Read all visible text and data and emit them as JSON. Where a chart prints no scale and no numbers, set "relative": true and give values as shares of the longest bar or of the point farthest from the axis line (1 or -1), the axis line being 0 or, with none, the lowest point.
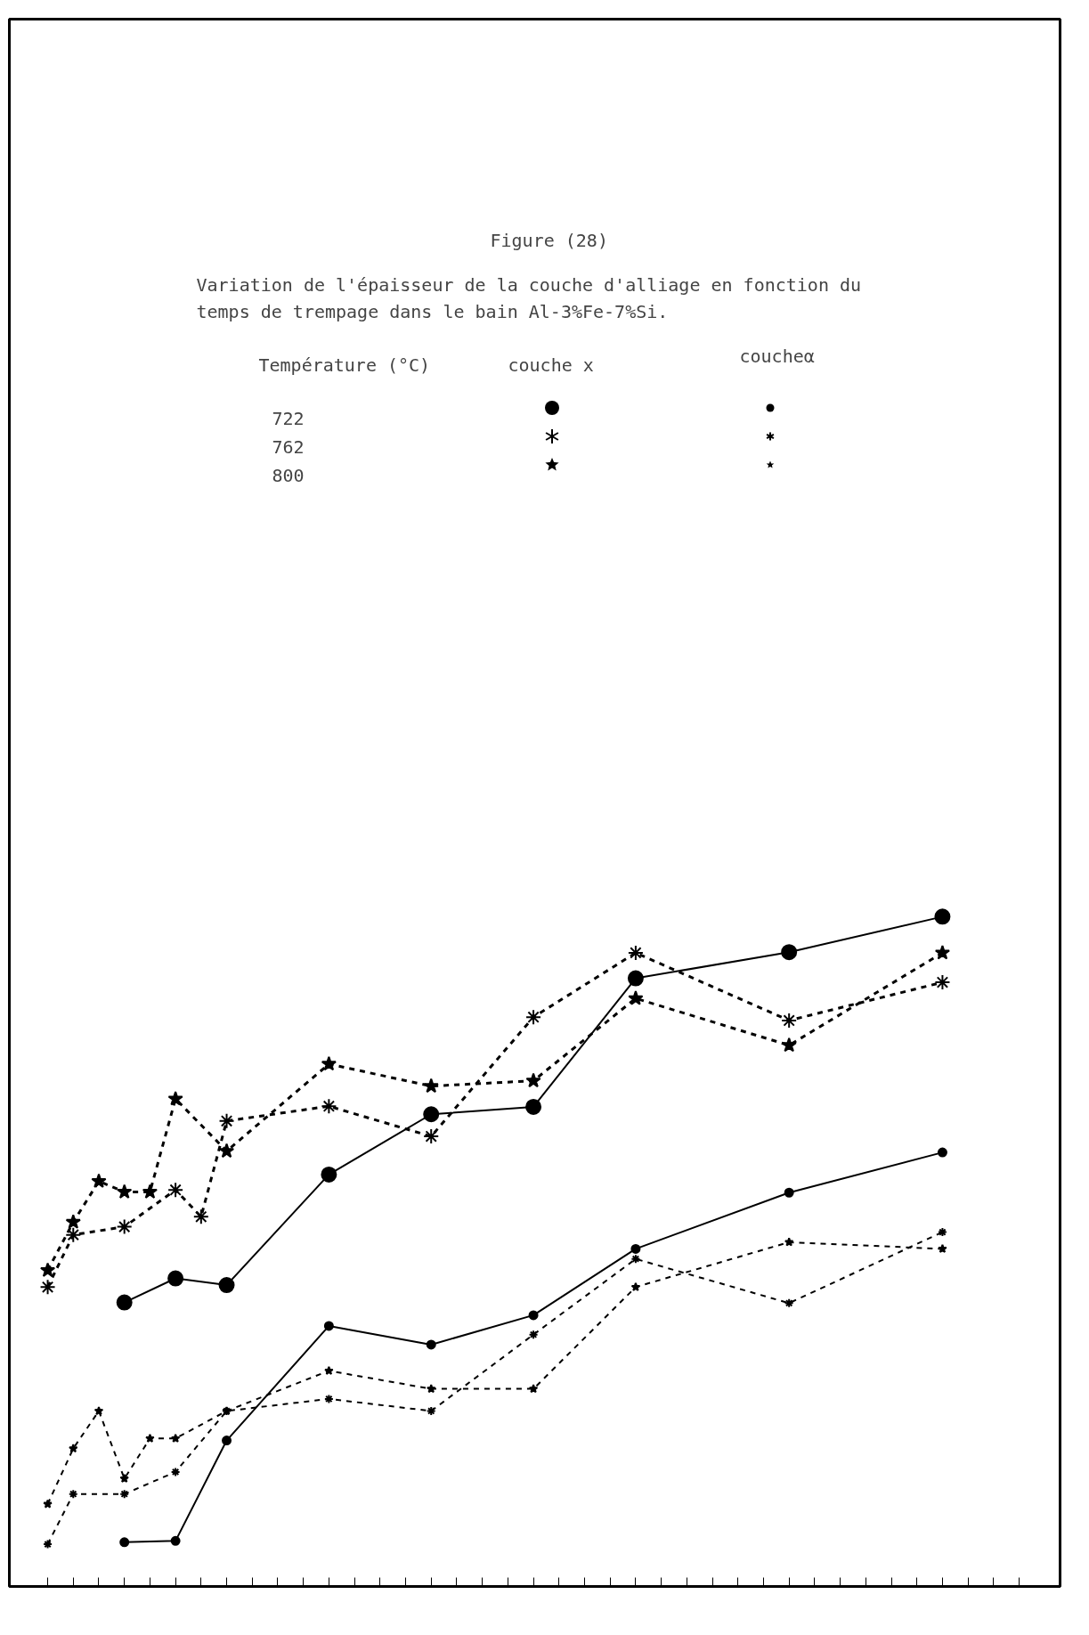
{
  "chart_data": {
    "type": "line",
    "relative": true,
    "title": "Figure (28)",
    "subtitle": "Variation de l'épaisseur de la couche d'alliage en fonction du temps de trempage dans le bain Al-3%Fe-7%Si.",
    "legend_title": "Température (°C)",
    "annotations": [
      "couche x",
      "coucheα",
      "722",
      "762",
      "800"
    ],
    "categories": [
      null,
      null,
      null,
      null,
      null,
      null,
      null,
      null,
      null,
      null,
      null,
      null,
      null,
      null,
      null,
      null,
      null,
      null,
      null,
      null,
      null,
      null,
      null,
      null,
      null,
      null,
      null,
      null,
      null,
      null,
      null,
      null,
      null,
      null,
      null,
      null,
      null,
      null,
      null
    ],
    "series": [
      {
        "color": "#000000",
        "marker": "circle",
        "line_style": "solid",
        "values": [
          null,
          null,
          null,
          0.424,
          null,
          0.46,
          null,
          0.45,
          null,
          null,
          null,
          0.615,
          null,
          null,
          null,
          0.705,
          null,
          null,
          null,
          0.716,
          null,
          null,
          null,
          0.908,
          null,
          null,
          null,
          null,
          null,
          0.947,
          null,
          null,
          null,
          null,
          null,
          1,
          null,
          null,
          null
        ]
      },
      {
        "color": "#000000",
        "marker": "cross",
        "line_style": "dashed",
        "values": [
          0.447,
          0.525,
          null,
          0.537,
          null,
          0.592,
          0.552,
          0.695,
          null,
          null,
          null,
          0.717,
          null,
          null,
          null,
          0.672,
          null,
          null,
          null,
          0.85,
          null,
          null,
          null,
          0.946,
          null,
          null,
          null,
          null,
          null,
          0.845,
          null,
          null,
          null,
          null,
          null,
          0.902,
          null,
          null,
          null
        ]
      },
      {
        "color": "#000000",
        "marker": "star",
        "line_style": "dashed",
        "values": [
          0.472,
          0.544,
          0.605,
          0.589,
          0.589,
          0.728,
          null,
          0.65,
          null,
          null,
          null,
          0.78,
          null,
          null,
          null,
          0.747,
          null,
          null,
          null,
          0.755,
          null,
          null,
          null,
          0.878,
          null,
          null,
          null,
          null,
          null,
          0.808,
          null,
          null,
          null,
          null,
          null,
          0.946,
          null,
          null,
          null
        ]
      },
      {
        "color": "#000000",
        "marker": "circle",
        "line_style": "solid",
        "values": [
          null,
          null,
          null,
          0.066,
          null,
          0.068,
          null,
          0.218,
          null,
          null,
          null,
          0.389,
          null,
          null,
          null,
          0.361,
          null,
          null,
          null,
          0.405,
          null,
          null,
          null,
          0.504,
          null,
          null,
          null,
          null,
          null,
          0.588,
          null,
          null,
          null,
          null,
          null,
          0.648,
          null,
          null,
          null
        ]
      },
      {
        "color": "#000000",
        "marker": "cross",
        "line_style": "dashed",
        "values": [
          0.063,
          0.138,
          null,
          0.138,
          null,
          0.171,
          null,
          0.262,
          null,
          null,
          null,
          0.28,
          null,
          null,
          null,
          0.262,
          null,
          null,
          null,
          0.376,
          null,
          null,
          null,
          0.489,
          null,
          null,
          null,
          null,
          null,
          0.423,
          null,
          null,
          null,
          null,
          null,
          0.529,
          null,
          null,
          null
        ]
      },
      {
        "color": "#000000",
        "marker": "star",
        "line_style": "dashed",
        "values": [
          0.123,
          0.206,
          0.262,
          0.161,
          0.221,
          0.221,
          null,
          0.262,
          null,
          null,
          null,
          0.322,
          null,
          null,
          null,
          0.295,
          null,
          null,
          null,
          0.295,
          null,
          null,
          null,
          0.447,
          null,
          null,
          null,
          null,
          null,
          0.514,
          null,
          null,
          null,
          null,
          null,
          0.504,
          null,
          null,
          null
        ]
      }
    ]
  }
}
